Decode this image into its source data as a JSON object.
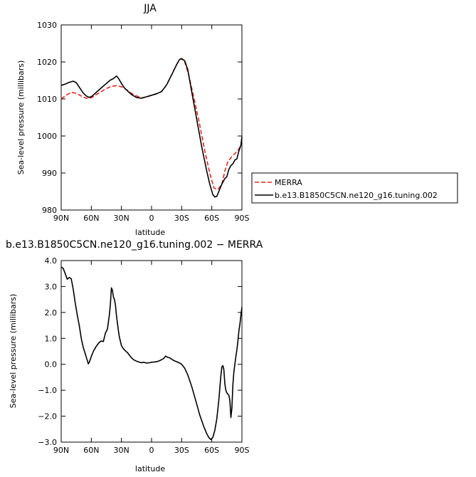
{
  "chart_data": [
    {
      "type": "line",
      "title": "JJA",
      "xlabel": "latitude",
      "ylabel": "Sea-level pressure (millibars)",
      "xlim": [
        90,
        -90
      ],
      "ylim": [
        980,
        1030
      ],
      "x_tick_values": [
        90,
        60,
        30,
        0,
        -30,
        -60,
        -90
      ],
      "x_tick_labels": [
        "90N",
        "60N",
        "30N",
        "0",
        "30S",
        "60S",
        "90S"
      ],
      "y_tick_values": [
        980,
        990,
        1000,
        1010,
        1020,
        1030
      ],
      "y_tick_labels": [
        "980",
        "990",
        "1000",
        "1010",
        "1020",
        "1030"
      ],
      "legend_position": "right",
      "series": [
        {
          "name": "MERRA",
          "color": "#e8231c",
          "dash": "dashed",
          "points": [
            [
              90,
              1010.0
            ],
            [
              85,
              1011.0
            ],
            [
              80,
              1011.8
            ],
            [
              75,
              1011.5
            ],
            [
              70,
              1010.8
            ],
            [
              65,
              1010.2
            ],
            [
              60,
              1010.3
            ],
            [
              55,
              1011.2
            ],
            [
              50,
              1012.0
            ],
            [
              45,
              1012.8
            ],
            [
              40,
              1013.4
            ],
            [
              35,
              1013.6
            ],
            [
              30,
              1013.3
            ],
            [
              25,
              1012.5
            ],
            [
              20,
              1011.5
            ],
            [
              15,
              1010.8
            ],
            [
              10,
              1010.3
            ],
            [
              5,
              1010.5
            ],
            [
              0,
              1011.0
            ],
            [
              -5,
              1011.4
            ],
            [
              -10,
              1012.0
            ],
            [
              -15,
              1013.8
            ],
            [
              -20,
              1016.5
            ],
            [
              -25,
              1019.3
            ],
            [
              -28,
              1020.7
            ],
            [
              -30,
              1020.8
            ],
            [
              -33,
              1020.0
            ],
            [
              -37,
              1016.5
            ],
            [
              -42,
              1010.5
            ],
            [
              -48,
              1003.0
            ],
            [
              -53,
              996.0
            ],
            [
              -58,
              990.0
            ],
            [
              -62,
              986.0
            ],
            [
              -66,
              985.5
            ],
            [
              -70,
              987.0
            ],
            [
              -73,
              990.5
            ],
            [
              -76,
              993.0
            ],
            [
              -80,
              994.5
            ],
            [
              -84,
              995.5
            ],
            [
              -87,
              996.5
            ],
            [
              -90,
              998.0
            ]
          ]
        },
        {
          "name": "b.e13.B1850C5CN.ne120_g16.tuning.002",
          "color": "#000000",
          "dash": "solid",
          "points": [
            [
              90,
              1013.7
            ],
            [
              86,
              1014.0
            ],
            [
              82,
              1014.5
            ],
            [
              78,
              1014.8
            ],
            [
              75,
              1014.4
            ],
            [
              72,
              1013.2
            ],
            [
              68,
              1011.6
            ],
            [
              65,
              1010.8
            ],
            [
              62,
              1010.4
            ],
            [
              59,
              1010.8
            ],
            [
              55,
              1011.8
            ],
            [
              50,
              1013.0
            ],
            [
              45,
              1014.2
            ],
            [
              41,
              1015.1
            ],
            [
              38,
              1015.5
            ],
            [
              35,
              1016.2
            ],
            [
              33,
              1015.6
            ],
            [
              30,
              1014.2
            ],
            [
              27,
              1013.0
            ],
            [
              24,
              1012.2
            ],
            [
              20,
              1011.2
            ],
            [
              15,
              1010.4
            ],
            [
              10,
              1010.2
            ],
            [
              5,
              1010.6
            ],
            [
              0,
              1011.0
            ],
            [
              -5,
              1011.4
            ],
            [
              -10,
              1012.0
            ],
            [
              -15,
              1013.8
            ],
            [
              -20,
              1016.5
            ],
            [
              -25,
              1019.3
            ],
            [
              -28,
              1020.7
            ],
            [
              -30,
              1020.9
            ],
            [
              -33,
              1020.3
            ],
            [
              -36,
              1018.0
            ],
            [
              -40,
              1012.0
            ],
            [
              -45,
              1004.5
            ],
            [
              -50,
              997.0
            ],
            [
              -55,
              990.5
            ],
            [
              -58,
              987.0
            ],
            [
              -61,
              984.2
            ],
            [
              -63,
              983.5
            ],
            [
              -65,
              983.7
            ],
            [
              -67,
              985.0
            ],
            [
              -70,
              987.0
            ],
            [
              -73,
              988.5
            ],
            [
              -75,
              989.0
            ],
            [
              -77,
              991.0
            ],
            [
              -79,
              992.0
            ],
            [
              -81,
              992.5
            ],
            [
              -83,
              993.5
            ],
            [
              -85,
              993.8
            ],
            [
              -87,
              996.0
            ],
            [
              -89,
              997.5
            ],
            [
              -90,
              999.8
            ]
          ]
        }
      ]
    },
    {
      "type": "line",
      "title": "b.e13.B1850C5CN.ne120_g16.tuning.002 − MERRA",
      "xlabel": "latitude",
      "ylabel": "Sea-level pressure (millibars)",
      "xlim": [
        90,
        -90
      ],
      "ylim": [
        -3.0,
        4.0
      ],
      "x_tick_values": [
        90,
        60,
        30,
        0,
        -30,
        -60,
        -90
      ],
      "x_tick_labels": [
        "90N",
        "60N",
        "30N",
        "0",
        "30S",
        "60S",
        "90S"
      ],
      "y_tick_values": [
        -3,
        -2,
        -1,
        0,
        1,
        2,
        3,
        4
      ],
      "y_tick_labels": [
        "−3.0",
        "−2.0",
        "−1.0",
        "0.0",
        "1.0",
        "2.0",
        "3.0",
        "4.0"
      ],
      "series": [
        {
          "color": "#000000",
          "dash": "solid",
          "points": [
            [
              90,
              3.75
            ],
            [
              88,
              3.7
            ],
            [
              86,
              3.5
            ],
            [
              84,
              3.28
            ],
            [
              82,
              3.35
            ],
            [
              80,
              3.3
            ],
            [
              78,
              2.9
            ],
            [
              76,
              2.35
            ],
            [
              74,
              1.9
            ],
            [
              72,
              1.5
            ],
            [
              70,
              1.0
            ],
            [
              68,
              0.65
            ],
            [
              66,
              0.4
            ],
            [
              64,
              0.15
            ],
            [
              63,
              0.02
            ],
            [
              62,
              0.08
            ],
            [
              60,
              0.3
            ],
            [
              58,
              0.5
            ],
            [
              55,
              0.7
            ],
            [
              52,
              0.85
            ],
            [
              50,
              0.9
            ],
            [
              48,
              0.88
            ],
            [
              46,
              1.2
            ],
            [
              44,
              1.35
            ],
            [
              42,
              1.9
            ],
            [
              41,
              2.3
            ],
            [
              40,
              2.95
            ],
            [
              39,
              2.85
            ],
            [
              38,
              2.6
            ],
            [
              37,
              2.5
            ],
            [
              36,
              2.3
            ],
            [
              35,
              1.9
            ],
            [
              34,
              1.6
            ],
            [
              33,
              1.3
            ],
            [
              32,
              1.05
            ],
            [
              30,
              0.72
            ],
            [
              28,
              0.6
            ],
            [
              26,
              0.52
            ],
            [
              24,
              0.45
            ],
            [
              22,
              0.35
            ],
            [
              20,
              0.25
            ],
            [
              18,
              0.18
            ],
            [
              15,
              0.12
            ],
            [
              12,
              0.08
            ],
            [
              10,
              0.06
            ],
            [
              8,
              0.08
            ],
            [
              5,
              0.05
            ],
            [
              2,
              0.06
            ],
            [
              0,
              0.08
            ],
            [
              -3,
              0.09
            ],
            [
              -5,
              0.1
            ],
            [
              -8,
              0.14
            ],
            [
              -10,
              0.18
            ],
            [
              -12,
              0.22
            ],
            [
              -14,
              0.32
            ],
            [
              -16,
              0.27
            ],
            [
              -18,
              0.25
            ],
            [
              -20,
              0.2
            ],
            [
              -22,
              0.15
            ],
            [
              -25,
              0.1
            ],
            [
              -28,
              0.05
            ],
            [
              -30,
              0.0
            ],
            [
              -33,
              -0.15
            ],
            [
              -36,
              -0.4
            ],
            [
              -40,
              -0.85
            ],
            [
              -44,
              -1.4
            ],
            [
              -48,
              -1.95
            ],
            [
              -52,
              -2.4
            ],
            [
              -55,
              -2.68
            ],
            [
              -57,
              -2.82
            ],
            [
              -59,
              -2.9
            ],
            [
              -61,
              -2.82
            ],
            [
              -63,
              -2.55
            ],
            [
              -65,
              -2.1
            ],
            [
              -67,
              -1.4
            ],
            [
              -69,
              -0.45
            ],
            [
              -70,
              -0.1
            ],
            [
              -71,
              -0.05
            ],
            [
              -72,
              -0.2
            ],
            [
              -73,
              -0.75
            ],
            [
              -74,
              -1.0
            ],
            [
              -75,
              -1.1
            ],
            [
              -77,
              -1.2
            ],
            [
              -78,
              -1.4
            ],
            [
              -79,
              -2.05
            ],
            [
              -80,
              -1.7
            ],
            [
              -81,
              -0.8
            ],
            [
              -82,
              -0.3
            ],
            [
              -84,
              0.3
            ],
            [
              -85,
              0.55
            ],
            [
              -86,
              0.9
            ],
            [
              -87,
              1.3
            ],
            [
              -88,
              1.55
            ],
            [
              -89,
              1.9
            ],
            [
              -90,
              2.2
            ]
          ]
        }
      ]
    }
  ]
}
